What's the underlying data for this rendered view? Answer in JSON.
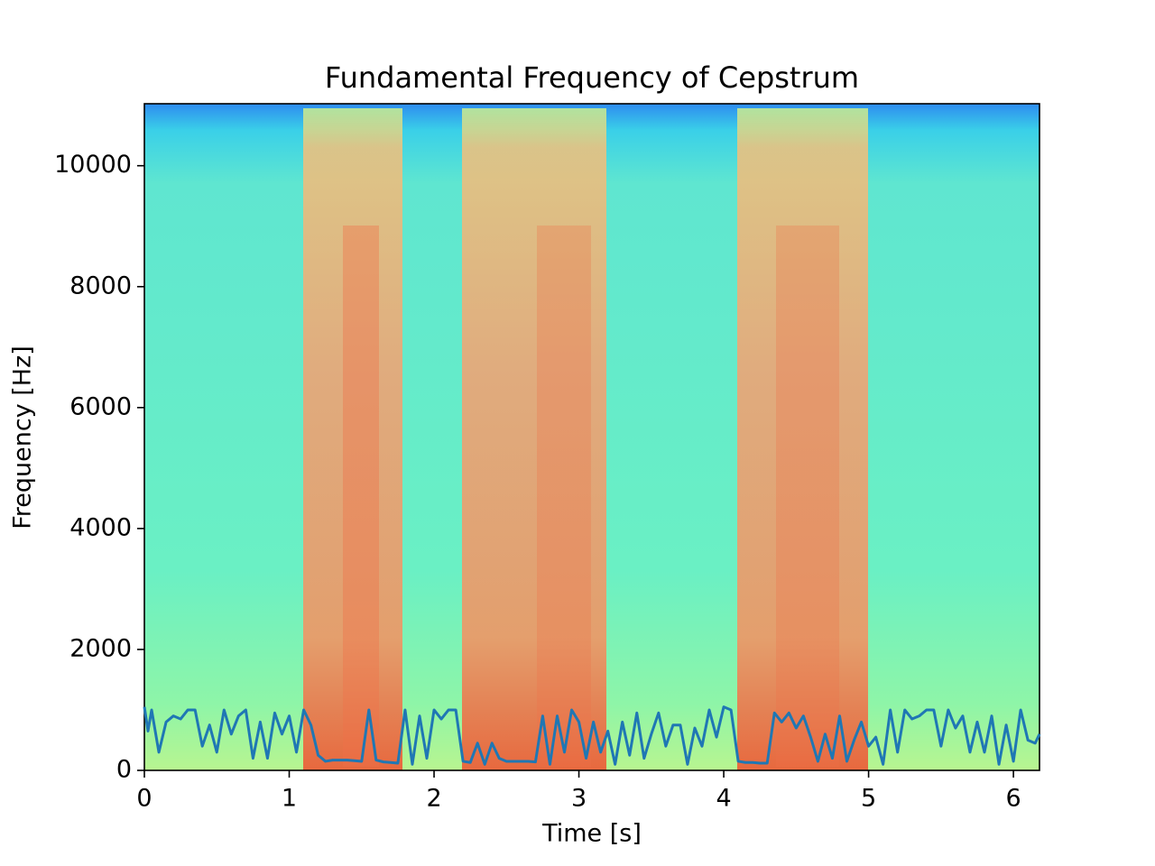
{
  "chart_data": {
    "type": "line",
    "title": "Fundamental Frequency of Cepstrum",
    "x_label": "Time [s]",
    "y_label": "Frequency [Hz]",
    "xlim": [
      0,
      6.18
    ],
    "ylim": [
      0,
      11025
    ],
    "xticks": [
      0,
      1,
      2,
      3,
      4,
      5,
      6
    ],
    "yticks": [
      0,
      2000,
      4000,
      6000,
      8000,
      10000
    ],
    "series": [
      {
        "color": "#1f77b4",
        "x": [
          0,
          0.025,
          0.05,
          0.1,
          0.15,
          0.2,
          0.25,
          0.3,
          0.35,
          0.4,
          0.45,
          0.5,
          0.55,
          0.6,
          0.65,
          0.7,
          0.75,
          0.8,
          0.85,
          0.9,
          0.95,
          1.0,
          1.05,
          1.1,
          1.15,
          1.2,
          1.25,
          1.3,
          1.35,
          1.4,
          1.45,
          1.5,
          1.55,
          1.6,
          1.65,
          1.7,
          1.75,
          1.8,
          1.85,
          1.9,
          1.95,
          2.0,
          2.05,
          2.1,
          2.15,
          2.2,
          2.25,
          2.3,
          2.35,
          2.4,
          2.45,
          2.5,
          2.55,
          2.6,
          2.65,
          2.7,
          2.75,
          2.8,
          2.85,
          2.9,
          2.95,
          3.0,
          3.05,
          3.1,
          3.15,
          3.2,
          3.25,
          3.3,
          3.35,
          3.4,
          3.45,
          3.5,
          3.55,
          3.6,
          3.65,
          3.7,
          3.75,
          3.8,
          3.85,
          3.9,
          3.95,
          4.0,
          4.05,
          4.1,
          4.15,
          4.2,
          4.25,
          4.3,
          4.35,
          4.4,
          4.45,
          4.5,
          4.55,
          4.6,
          4.65,
          4.7,
          4.75,
          4.8,
          4.85,
          4.9,
          4.95,
          5.0,
          5.05,
          5.1,
          5.15,
          5.2,
          5.25,
          5.3,
          5.35,
          5.4,
          5.45,
          5.5,
          5.55,
          5.6,
          5.65,
          5.7,
          5.75,
          5.8,
          5.85,
          5.9,
          5.95,
          6.0,
          6.05,
          6.1,
          6.15,
          6.18
        ],
        "values": [
          1050,
          650,
          1000,
          300,
          800,
          900,
          850,
          1000,
          1000,
          400,
          750,
          300,
          1000,
          600,
          900,
          1000,
          200,
          800,
          200,
          950,
          600,
          900,
          300,
          1000,
          750,
          250,
          150,
          170,
          170,
          170,
          160,
          150,
          1000,
          170,
          140,
          130,
          120,
          1000,
          100,
          900,
          200,
          1000,
          850,
          1000,
          1000,
          150,
          130,
          450,
          100,
          450,
          200,
          150,
          150,
          150,
          150,
          140,
          900,
          100,
          900,
          300,
          1000,
          800,
          200,
          800,
          300,
          650,
          100,
          800,
          250,
          950,
          200,
          600,
          950,
          400,
          750,
          750,
          100,
          700,
          400,
          1000,
          550,
          1050,
          1000,
          150,
          130,
          130,
          120,
          120,
          950,
          800,
          950,
          700,
          900,
          550,
          150,
          600,
          200,
          900,
          150,
          500,
          800,
          400,
          550,
          100,
          1000,
          300,
          1000,
          850,
          900,
          1000,
          1000,
          400,
          1000,
          700,
          900,
          300,
          800,
          300,
          900,
          100,
          750,
          150,
          1000,
          500,
          450,
          600
        ]
      }
    ]
  }
}
